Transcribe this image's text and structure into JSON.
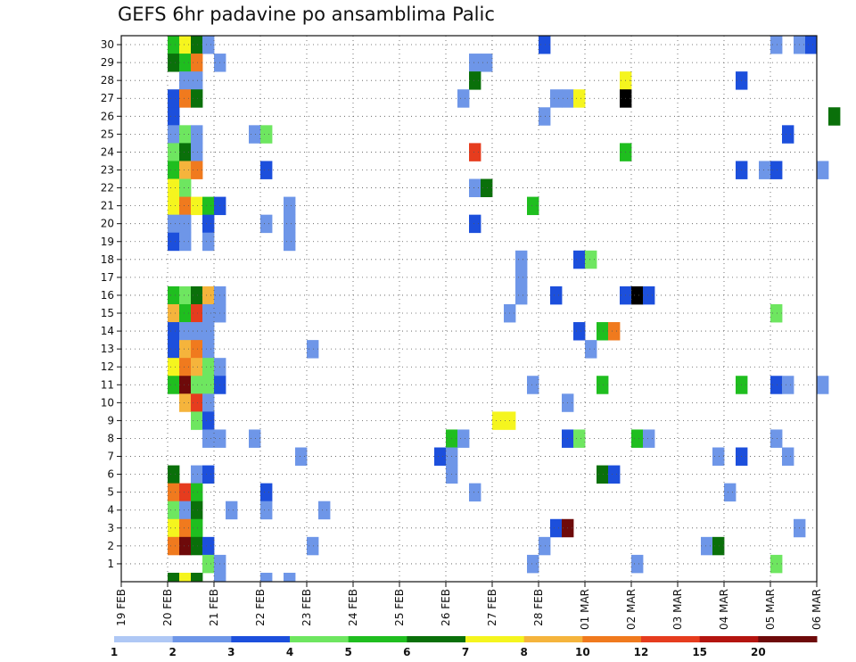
{
  "chart_data": {
    "type": "heatmap",
    "title": "GEFS 6hr padavine po ansamblima Palic",
    "x_tick_labels": [
      "19 FEB",
      "20 FEB",
      "21 FEB",
      "22 FEB",
      "23 FEB",
      "24 FEB",
      "25 FEB",
      "26 FEB",
      "27 FEB",
      "28 FEB",
      "01 MAR",
      "02 MAR",
      "03 MAR",
      "04 MAR",
      "05 MAR",
      "06 MAR"
    ],
    "y_tick_labels": [
      "1",
      "2",
      "3",
      "4",
      "5",
      "6",
      "7",
      "8",
      "9",
      "10",
      "11",
      "12",
      "13",
      "14",
      "15",
      "16",
      "17",
      "18",
      "19",
      "20",
      "21",
      "22",
      "23",
      "24",
      "25",
      "26",
      "27",
      "28",
      "29",
      "30"
    ],
    "grid": true,
    "steps_per_day": 4,
    "colorbar": {
      "labels": [
        "1",
        "2",
        "3",
        "4",
        "5",
        "6",
        "7",
        "8",
        "10",
        "12",
        "15",
        "20"
      ],
      "colors": [
        "#afc8f5",
        "#6e96e8",
        "#1c4fdc",
        "#6ee660",
        "#1fbe1f",
        "#0a700a",
        "#f5f51e",
        "#f5b43c",
        "#f07a1e",
        "#e63c1e",
        "#b4140f",
        "#6e0a0a"
      ]
    },
    "cells": [
      [
        30,
        4,
        4
      ],
      [
        30,
        5,
        6
      ],
      [
        30,
        6,
        5
      ],
      [
        30,
        7,
        1
      ],
      [
        30,
        36,
        2
      ],
      [
        30,
        56,
        1
      ],
      [
        30,
        58,
        1
      ],
      [
        30,
        59,
        2
      ],
      [
        29,
        4,
        5
      ],
      [
        29,
        5,
        4
      ],
      [
        29,
        6,
        8
      ],
      [
        29,
        8,
        1
      ],
      [
        29,
        30,
        1
      ],
      [
        29,
        31,
        1
      ],
      [
        28,
        5,
        1
      ],
      [
        28,
        6,
        1
      ],
      [
        28,
        30,
        5
      ],
      [
        28,
        43,
        6
      ],
      [
        28,
        53,
        2
      ],
      [
        27,
        4,
        2
      ],
      [
        27,
        5,
        8
      ],
      [
        27,
        6,
        5
      ],
      [
        27,
        29,
        1
      ],
      [
        27,
        37,
        1
      ],
      [
        27,
        38,
        1
      ],
      [
        27,
        39,
        6
      ],
      [
        27,
        43,
        12
      ],
      [
        26,
        4,
        2
      ],
      [
        26,
        36,
        1
      ],
      [
        26,
        61,
        5
      ],
      [
        25,
        4,
        1
      ],
      [
        25,
        5,
        3
      ],
      [
        25,
        6,
        1
      ],
      [
        25,
        11,
        1
      ],
      [
        25,
        12,
        3
      ],
      [
        25,
        57,
        2
      ],
      [
        24,
        4,
        3
      ],
      [
        24,
        5,
        5
      ],
      [
        24,
        6,
        1
      ],
      [
        24,
        30,
        9
      ],
      [
        24,
        43,
        4
      ],
      [
        23,
        4,
        4
      ],
      [
        23,
        5,
        7
      ],
      [
        23,
        6,
        8
      ],
      [
        23,
        12,
        2
      ],
      [
        23,
        53,
        2
      ],
      [
        23,
        55,
        1
      ],
      [
        23,
        56,
        2
      ],
      [
        23,
        60,
        1
      ],
      [
        22,
        4,
        6
      ],
      [
        22,
        5,
        3
      ],
      [
        22,
        30,
        1
      ],
      [
        22,
        31,
        5
      ],
      [
        21,
        4,
        6
      ],
      [
        21,
        5,
        8
      ],
      [
        21,
        6,
        6
      ],
      [
        21,
        7,
        4
      ],
      [
        21,
        8,
        2
      ],
      [
        21,
        14,
        1
      ],
      [
        21,
        35,
        4
      ],
      [
        20,
        4,
        1
      ],
      [
        20,
        5,
        1
      ],
      [
        20,
        7,
        2
      ],
      [
        20,
        12,
        1
      ],
      [
        20,
        14,
        1
      ],
      [
        20,
        30,
        2
      ],
      [
        19,
        4,
        2
      ],
      [
        19,
        5,
        1
      ],
      [
        19,
        7,
        1
      ],
      [
        19,
        14,
        1
      ],
      [
        18,
        34,
        1
      ],
      [
        18,
        39,
        2
      ],
      [
        18,
        40,
        3
      ],
      [
        17,
        34,
        1
      ],
      [
        16,
        4,
        4
      ],
      [
        16,
        5,
        3
      ],
      [
        16,
        6,
        5
      ],
      [
        16,
        7,
        7
      ],
      [
        16,
        8,
        1
      ],
      [
        16,
        34,
        1
      ],
      [
        16,
        37,
        2
      ],
      [
        16,
        43,
        2
      ],
      [
        16,
        44,
        12
      ],
      [
        16,
        45,
        2
      ],
      [
        15,
        4,
        7
      ],
      [
        15,
        5,
        4
      ],
      [
        15,
        6,
        9
      ],
      [
        15,
        7,
        1
      ],
      [
        15,
        8,
        1
      ],
      [
        15,
        33,
        1
      ],
      [
        15,
        56,
        3
      ],
      [
        14,
        4,
        2
      ],
      [
        14,
        5,
        1
      ],
      [
        14,
        6,
        1
      ],
      [
        14,
        7,
        1
      ],
      [
        14,
        39,
        2
      ],
      [
        14,
        41,
        4
      ],
      [
        14,
        42,
        8
      ],
      [
        13,
        4,
        2
      ],
      [
        13,
        5,
        7
      ],
      [
        13,
        6,
        8
      ],
      [
        13,
        7,
        1
      ],
      [
        13,
        16,
        1
      ],
      [
        13,
        40,
        1
      ],
      [
        12,
        4,
        6
      ],
      [
        12,
        5,
        8
      ],
      [
        12,
        6,
        7
      ],
      [
        12,
        7,
        3
      ],
      [
        12,
        8,
        1
      ],
      [
        11,
        4,
        4
      ],
      [
        11,
        5,
        11
      ],
      [
        11,
        6,
        3
      ],
      [
        11,
        7,
        3
      ],
      [
        11,
        8,
        2
      ],
      [
        11,
        35,
        1
      ],
      [
        11,
        41,
        4
      ],
      [
        11,
        53,
        4
      ],
      [
        11,
        56,
        2
      ],
      [
        11,
        57,
        1
      ],
      [
        11,
        60,
        1
      ],
      [
        10,
        5,
        7
      ],
      [
        10,
        6,
        9
      ],
      [
        10,
        7,
        1
      ],
      [
        10,
        38,
        1
      ],
      [
        9,
        6,
        3
      ],
      [
        9,
        7,
        2
      ],
      [
        9,
        32,
        6
      ],
      [
        9,
        33,
        6
      ],
      [
        8,
        7,
        1
      ],
      [
        8,
        8,
        1
      ],
      [
        8,
        11,
        1
      ],
      [
        8,
        28,
        4
      ],
      [
        8,
        29,
        1
      ],
      [
        8,
        38,
        2
      ],
      [
        8,
        39,
        3
      ],
      [
        8,
        44,
        4
      ],
      [
        8,
        45,
        1
      ],
      [
        8,
        56,
        1
      ],
      [
        7,
        15,
        1
      ],
      [
        7,
        27,
        2
      ],
      [
        7,
        28,
        1
      ],
      [
        7,
        51,
        1
      ],
      [
        7,
        53,
        2
      ],
      [
        7,
        57,
        1
      ],
      [
        6,
        4,
        5
      ],
      [
        6,
        6,
        1
      ],
      [
        6,
        7,
        2
      ],
      [
        6,
        28,
        1
      ],
      [
        6,
        41,
        5
      ],
      [
        6,
        42,
        2
      ],
      [
        5,
        4,
        8
      ],
      [
        5,
        5,
        9
      ],
      [
        5,
        6,
        4
      ],
      [
        5,
        12,
        2
      ],
      [
        5,
        30,
        1
      ],
      [
        5,
        52,
        1
      ],
      [
        4,
        4,
        3
      ],
      [
        4,
        5,
        1
      ],
      [
        4,
        6,
        5
      ],
      [
        4,
        9,
        1
      ],
      [
        4,
        12,
        1
      ],
      [
        4,
        17,
        1
      ],
      [
        3,
        4,
        6
      ],
      [
        3,
        5,
        8
      ],
      [
        3,
        6,
        4
      ],
      [
        3,
        37,
        2
      ],
      [
        3,
        38,
        11
      ],
      [
        3,
        58,
        1
      ],
      [
        2,
        4,
        8
      ],
      [
        2,
        5,
        11
      ],
      [
        2,
        6,
        5
      ],
      [
        2,
        7,
        2
      ],
      [
        2,
        16,
        1
      ],
      [
        2,
        36,
        1
      ],
      [
        2,
        50,
        1
      ],
      [
        2,
        51,
        5
      ],
      [
        1,
        7,
        3
      ],
      [
        1,
        8,
        1
      ],
      [
        1,
        35,
        1
      ],
      [
        1,
        44,
        1
      ],
      [
        1,
        56,
        3
      ],
      [
        0,
        4,
        5
      ],
      [
        0,
        5,
        6
      ],
      [
        0,
        6,
        5
      ],
      [
        0,
        8,
        1
      ],
      [
        0,
        12,
        1
      ],
      [
        0,
        14,
        1
      ]
    ]
  }
}
